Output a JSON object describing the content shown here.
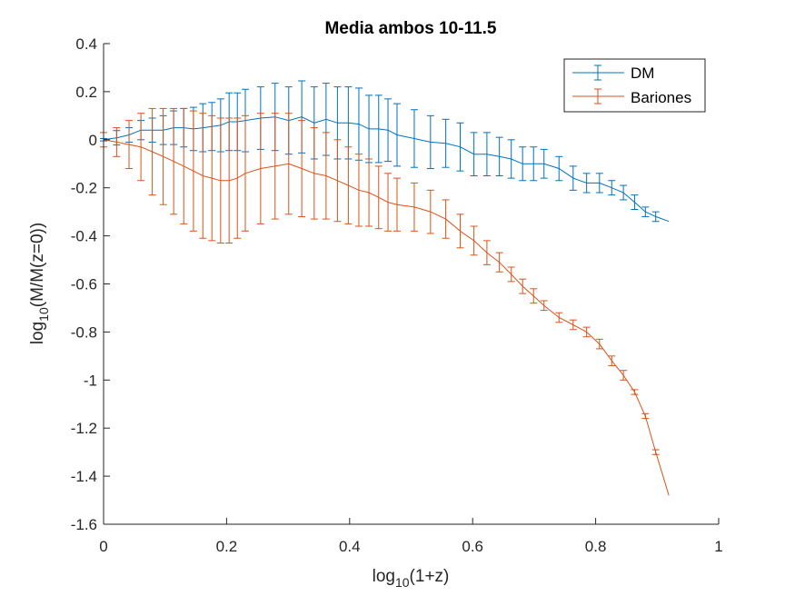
{
  "chart_data": {
    "type": "line",
    "title": "Media ambos 10-11.5",
    "xlabel": {
      "base": "log",
      "sub": "10",
      "rest": "(1+z)"
    },
    "ylabel": {
      "base": "log",
      "sub": "10",
      "rest": "(M/M(z=0))"
    },
    "xlim": [
      0,
      1
    ],
    "ylim": [
      -1.6,
      0.4
    ],
    "xticks": [
      0,
      0.2,
      0.4,
      0.6,
      0.8,
      1
    ],
    "xtick_labels": [
      "0",
      "0.2",
      "0.4",
      "0.6",
      "0.8",
      "1"
    ],
    "yticks": [
      -1.6,
      -1.4,
      -1.2,
      -1,
      -0.8,
      -0.6,
      -0.4,
      -0.2,
      0,
      0.2,
      0.4
    ],
    "ytick_labels": [
      "-1.6",
      "-1.4",
      "-1.2",
      "-1",
      "-0.8",
      "-0.6",
      "-0.4",
      "-0.2",
      "0",
      "0.2",
      "0.4"
    ],
    "grid": false,
    "legend_position": "top-right",
    "x": [
      0,
      0.0212,
      0.0414,
      0.0607,
      0.0792,
      0.0969,
      0.1139,
      0.1303,
      0.1461,
      0.1614,
      0.1761,
      0.1903,
      0.2041,
      0.2175,
      0.2304,
      0.2553,
      0.2788,
      0.301,
      0.3222,
      0.3424,
      0.3617,
      0.3802,
      0.3979,
      0.415,
      0.4314,
      0.4472,
      0.4624,
      0.4771,
      0.5051,
      0.5315,
      0.5563,
      0.5798,
      0.6021,
      0.6232,
      0.6435,
      0.6628,
      0.6812,
      0.699,
      0.716,
      0.7404,
      0.7634,
      0.7853,
      0.8062,
      0.8261,
      0.8451,
      0.8633,
      0.8808,
      0.8976,
      0.9191
    ],
    "series": [
      {
        "name": "DM",
        "color": "#0072BD",
        "values": [
          0,
          0.008,
          0.02,
          0.04,
          0.04,
          0.04,
          0.05,
          0.05,
          0.045,
          0.05,
          0.055,
          0.06,
          0.075,
          0.075,
          0.08,
          0.09,
          0.095,
          0.08,
          0.095,
          0.07,
          0.085,
          0.07,
          0.07,
          0.065,
          0.045,
          0.045,
          0.04,
          0.02,
          0.005,
          -0.01,
          -0.015,
          -0.03,
          -0.06,
          -0.06,
          -0.07,
          -0.08,
          -0.1,
          -0.1,
          -0.1,
          -0.12,
          -0.16,
          -0.18,
          -0.18,
          -0.2,
          -0.22,
          -0.26,
          -0.3,
          -0.32,
          -0.34
        ],
        "errors": [
          0.005,
          0.03,
          0.03,
          0.04,
          0.05,
          0.06,
          0.07,
          0.08,
          0.09,
          0.1,
          0.1,
          0.11,
          0.12,
          0.12,
          0.13,
          0.13,
          0.14,
          0.14,
          0.15,
          0.15,
          0.15,
          0.15,
          0.15,
          0.15,
          0.14,
          0.14,
          0.13,
          0.13,
          0.12,
          0.11,
          0.1,
          0.1,
          0.09,
          0.09,
          0.08,
          0.08,
          0.07,
          0.07,
          0.06,
          0.05,
          0.05,
          0.04,
          0.04,
          0.03,
          0.03,
          0.03,
          0.02,
          0.02,
          0
        ]
      },
      {
        "name": "Bariones",
        "color": "#D95319",
        "values": [
          0,
          -0.01,
          -0.02,
          -0.03,
          -0.05,
          -0.07,
          -0.09,
          -0.11,
          -0.13,
          -0.15,
          -0.16,
          -0.17,
          -0.17,
          -0.16,
          -0.14,
          -0.12,
          -0.11,
          -0.1,
          -0.12,
          -0.14,
          -0.15,
          -0.17,
          -0.19,
          -0.21,
          -0.22,
          -0.24,
          -0.26,
          -0.27,
          -0.28,
          -0.3,
          -0.33,
          -0.38,
          -0.42,
          -0.47,
          -0.51,
          -0.56,
          -0.61,
          -0.65,
          -0.69,
          -0.74,
          -0.77,
          -0.8,
          -0.85,
          -0.92,
          -0.98,
          -1.05,
          -1.15,
          -1.3,
          -1.48
        ],
        "errors": [
          0.03,
          0.06,
          0.1,
          0.14,
          0.18,
          0.2,
          0.22,
          0.24,
          0.25,
          0.26,
          0.26,
          0.26,
          0.26,
          0.25,
          0.24,
          0.23,
          0.22,
          0.21,
          0.2,
          0.19,
          0.18,
          0.17,
          0.16,
          0.15,
          0.14,
          0.13,
          0.12,
          0.11,
          0.1,
          0.09,
          0.08,
          0.07,
          0.06,
          0.05,
          0.04,
          0.03,
          0.03,
          0.03,
          0.02,
          0.02,
          0.02,
          0.02,
          0.02,
          0.02,
          0.02,
          0.01,
          0.01,
          0.01,
          0
        ]
      }
    ]
  }
}
